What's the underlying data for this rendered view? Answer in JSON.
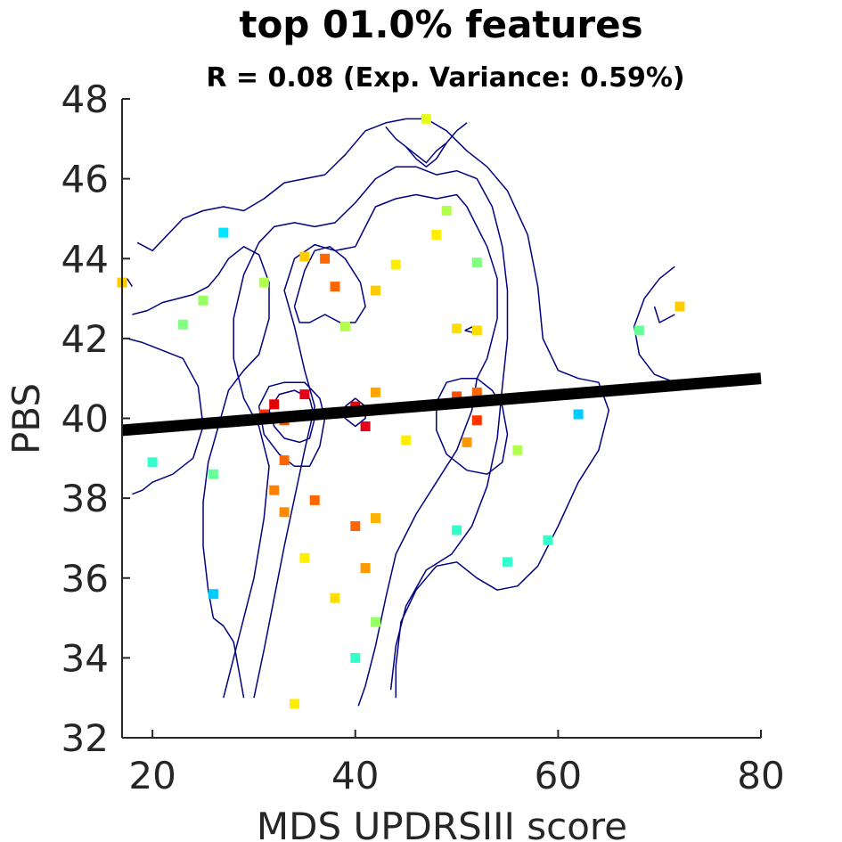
{
  "chart_data": {
    "type": "scatter",
    "title": "top 01.0% features",
    "subtitle": "R = 0.08 (Exp. Variance: 0.59%)",
    "xlabel": "MDS UPDRSIII score",
    "ylabel": "PBS",
    "xlim": [
      17,
      80
    ],
    "ylim": [
      32,
      48
    ],
    "xticks": [
      20,
      40,
      60,
      80
    ],
    "yticks": [
      32,
      34,
      36,
      38,
      40,
      42,
      44,
      46,
      48
    ],
    "grid": false,
    "legend": "none",
    "regression_line": {
      "x": [
        17,
        80
      ],
      "y": [
        39.7,
        41.0
      ]
    },
    "points": [
      {
        "x": 17,
        "y": 43.4,
        "color": "#ffcc00"
      },
      {
        "x": 20,
        "y": 38.9,
        "color": "#33ffcc"
      },
      {
        "x": 23,
        "y": 42.35,
        "color": "#80ff80"
      },
      {
        "x": 25,
        "y": 42.95,
        "color": "#99ff66"
      },
      {
        "x": 26,
        "y": 38.6,
        "color": "#66ff99"
      },
      {
        "x": 26,
        "y": 35.6,
        "color": "#00ccff"
      },
      {
        "x": 27,
        "y": 44.65,
        "color": "#00e5ff"
      },
      {
        "x": 31,
        "y": 43.4,
        "color": "#b3ff4d"
      },
      {
        "x": 31,
        "y": 40.1,
        "color": "#ff3300"
      },
      {
        "x": 32,
        "y": 40.35,
        "color": "#e60000"
      },
      {
        "x": 32,
        "y": 38.2,
        "color": "#ff8000"
      },
      {
        "x": 33,
        "y": 39.95,
        "color": "#ff4d00"
      },
      {
        "x": 33,
        "y": 38.95,
        "color": "#ff6600"
      },
      {
        "x": 33,
        "y": 37.65,
        "color": "#ff8c00"
      },
      {
        "x": 35,
        "y": 40.6,
        "color": "#e6001a"
      },
      {
        "x": 35,
        "y": 44.05,
        "color": "#ffcc00"
      },
      {
        "x": 35,
        "y": 36.5,
        "color": "#ffee00"
      },
      {
        "x": 36,
        "y": 37.95,
        "color": "#ff6600"
      },
      {
        "x": 37,
        "y": 44.0,
        "color": "#ff6600"
      },
      {
        "x": 38,
        "y": 43.3,
        "color": "#ff6600"
      },
      {
        "x": 38,
        "y": 35.5,
        "color": "#ffdd00"
      },
      {
        "x": 39,
        "y": 42.3,
        "color": "#b3ff4d"
      },
      {
        "x": 40,
        "y": 40.3,
        "color": "#e60000"
      },
      {
        "x": 40,
        "y": 37.3,
        "color": "#ff6600"
      },
      {
        "x": 40,
        "y": 34.0,
        "color": "#33ffcc"
      },
      {
        "x": 41,
        "y": 39.8,
        "color": "#e6001a"
      },
      {
        "x": 41,
        "y": 36.25,
        "color": "#ff9900"
      },
      {
        "x": 42,
        "y": 43.2,
        "color": "#ffcc00"
      },
      {
        "x": 42,
        "y": 40.65,
        "color": "#ffa600"
      },
      {
        "x": 42,
        "y": 37.5,
        "color": "#ffb300"
      },
      {
        "x": 42,
        "y": 34.9,
        "color": "#99ff66"
      },
      {
        "x": 44,
        "y": 43.85,
        "color": "#ffee00"
      },
      {
        "x": 45,
        "y": 39.45,
        "color": "#ffee00"
      },
      {
        "x": 47,
        "y": 47.5,
        "color": "#e6ff1a"
      },
      {
        "x": 48,
        "y": 44.6,
        "color": "#ffee00"
      },
      {
        "x": 49,
        "y": 45.2,
        "color": "#b3ff4d"
      },
      {
        "x": 50,
        "y": 42.25,
        "color": "#ffdd00"
      },
      {
        "x": 50,
        "y": 40.55,
        "color": "#ff4d00"
      },
      {
        "x": 50,
        "y": 37.2,
        "color": "#33ffcc"
      },
      {
        "x": 51,
        "y": 39.4,
        "color": "#ff9900"
      },
      {
        "x": 52,
        "y": 43.9,
        "color": "#80ff80"
      },
      {
        "x": 52,
        "y": 42.2,
        "color": "#ffdd00"
      },
      {
        "x": 52,
        "y": 40.65,
        "color": "#ff6600"
      },
      {
        "x": 52,
        "y": 39.95,
        "color": "#ff3300"
      },
      {
        "x": 55,
        "y": 36.4,
        "color": "#33ffcc"
      },
      {
        "x": 56,
        "y": 39.2,
        "color": "#b3ff4d"
      },
      {
        "x": 59,
        "y": 36.95,
        "color": "#33ffcc"
      },
      {
        "x": 62,
        "y": 40.1,
        "color": "#00ccff"
      },
      {
        "x": 68,
        "y": 42.2,
        "color": "#66ff99"
      },
      {
        "x": 72,
        "y": 42.8,
        "color": "#ffcc00"
      },
      {
        "x": 34,
        "y": 32.85,
        "color": "#ffee00"
      }
    ],
    "contours": [
      [
        [
          30,
          33
        ],
        [
          31,
          34.2
        ],
        [
          32,
          35.5
        ],
        [
          33,
          36.8
        ],
        [
          34,
          38
        ],
        [
          35,
          39.2
        ],
        [
          36,
          40.3
        ],
        [
          35,
          41.2
        ],
        [
          34,
          42.3
        ],
        [
          33,
          43.2
        ],
        [
          34,
          44
        ],
        [
          36,
          44.35
        ],
        [
          38,
          44.2
        ],
        [
          40,
          44.3
        ],
        [
          41,
          44.8
        ],
        [
          42,
          45.3
        ],
        [
          44,
          45.5
        ],
        [
          46,
          45.6
        ],
        [
          48,
          45.5
        ],
        [
          50,
          45.6
        ],
        [
          51,
          45.3
        ],
        [
          52,
          44.8
        ],
        [
          53,
          44.3
        ],
        [
          54,
          43.5
        ],
        [
          54,
          42.5
        ],
        [
          53,
          41.5
        ],
        [
          52,
          41
        ],
        [
          51.5,
          40.2
        ],
        [
          50,
          39.2
        ],
        [
          48,
          38.4
        ],
        [
          46,
          37.6
        ],
        [
          44,
          36.6
        ],
        [
          43,
          35.5
        ],
        [
          42,
          34.3
        ],
        [
          41,
          33.3
        ],
        [
          40.3,
          32.8
        ]
      ],
      [
        [
          27,
          33
        ],
        [
          28.5,
          34.5
        ],
        [
          30,
          36
        ],
        [
          31,
          37.5
        ],
        [
          31.5,
          38.8
        ],
        [
          30.5,
          39.8
        ],
        [
          29,
          40.5
        ],
        [
          28,
          41.5
        ],
        [
          28,
          42.5
        ],
        [
          29,
          43.6
        ],
        [
          30.5,
          44.4
        ],
        [
          32,
          44.8
        ],
        [
          34,
          44.9
        ],
        [
          36,
          44.8
        ],
        [
          38,
          44.9
        ],
        [
          40,
          45.4
        ],
        [
          42,
          46
        ],
        [
          44,
          46.3
        ],
        [
          46,
          46.3
        ],
        [
          48,
          46.1
        ],
        [
          50,
          46.2
        ],
        [
          52,
          46
        ],
        [
          53.5,
          45.3
        ],
        [
          54.5,
          44.3
        ],
        [
          55,
          43.2
        ],
        [
          55,
          42
        ],
        [
          54.5,
          40.8
        ],
        [
          54,
          39.5
        ],
        [
          53,
          38.3
        ],
        [
          51.5,
          37.3
        ],
        [
          49.5,
          36.6
        ],
        [
          47,
          36.2
        ],
        [
          45,
          35.3
        ],
        [
          44,
          34.3
        ],
        [
          43.5,
          33.2
        ]
      ],
      [
        [
          18.5,
          44.4
        ],
        [
          20,
          44.2
        ],
        [
          21.5,
          44.6
        ],
        [
          23,
          45
        ],
        [
          25,
          45.2
        ],
        [
          27,
          45.3
        ],
        [
          29,
          45.2
        ],
        [
          31,
          45.5
        ],
        [
          33,
          45.9
        ],
        [
          35,
          46
        ],
        [
          37,
          46.1
        ],
        [
          39,
          46.6
        ],
        [
          41,
          47.2
        ],
        [
          43,
          47.4
        ],
        [
          45,
          47.5
        ],
        [
          47,
          47.5
        ],
        [
          49,
          47.2
        ],
        [
          51,
          46.7
        ],
        [
          53,
          46.3
        ],
        [
          55,
          45.7
        ],
        [
          57,
          44.6
        ],
        [
          58,
          43.3
        ],
        [
          58.5,
          42
        ],
        [
          60,
          41.2
        ],
        [
          62,
          41
        ],
        [
          64,
          40.9
        ],
        [
          65,
          40.2
        ],
        [
          64,
          39.2
        ],
        [
          62,
          38.4
        ],
        [
          60,
          37.3
        ],
        [
          58,
          36.3
        ],
        [
          56,
          35.8
        ],
        [
          54,
          35.7
        ],
        [
          52,
          36
        ],
        [
          50,
          36.4
        ],
        [
          48,
          36.3
        ],
        [
          46,
          35.7
        ],
        [
          44.5,
          34.9
        ],
        [
          44,
          33.8
        ],
        [
          44,
          33
        ]
      ],
      [
        [
          17.5,
          42
        ],
        [
          19,
          41.9
        ],
        [
          21,
          41.7
        ],
        [
          23,
          41.5
        ],
        [
          24.5,
          40.8
        ],
        [
          25,
          39.8
        ],
        [
          24,
          39
        ],
        [
          22,
          38.6
        ],
        [
          20,
          38.4
        ],
        [
          19,
          38.2
        ],
        [
          18,
          38.1
        ]
      ],
      [
        [
          18,
          42.6
        ],
        [
          19.5,
          42.7
        ],
        [
          21,
          42.9
        ],
        [
          22.5,
          43
        ],
        [
          24,
          43.1
        ],
        [
          25.5,
          43.3
        ],
        [
          26.5,
          43.6
        ],
        [
          27.5,
          44
        ],
        [
          29,
          44.3
        ],
        [
          30.5,
          44.1
        ],
        [
          31.5,
          43.4
        ],
        [
          31.5,
          42.5
        ],
        [
          30.5,
          41.6
        ],
        [
          29,
          41.2
        ],
        [
          27.5,
          40.7
        ],
        [
          26.5,
          39.8
        ],
        [
          25.5,
          38.9
        ],
        [
          25,
          37.9
        ],
        [
          25,
          36.8
        ],
        [
          25.5,
          35.7
        ],
        [
          26,
          35
        ],
        [
          27,
          34.8
        ],
        [
          28,
          34.4
        ],
        [
          28.5,
          33.7
        ],
        [
          29,
          33
        ]
      ],
      [
        [
          34,
          42.8
        ],
        [
          35,
          43.7
        ],
        [
          36,
          44.2
        ],
        [
          37.5,
          44.3
        ],
        [
          39,
          44
        ],
        [
          40.5,
          43.4
        ],
        [
          41,
          42.8
        ],
        [
          40,
          42.4
        ],
        [
          38.5,
          42.4
        ],
        [
          37,
          42.6
        ],
        [
          35.5,
          42.4
        ],
        [
          34.5,
          42.4
        ],
        [
          34,
          42.8
        ]
      ],
      [
        [
          31.5,
          40.2
        ],
        [
          32.5,
          40.6
        ],
        [
          34,
          40.7
        ],
        [
          35.5,
          40.5
        ],
        [
          36,
          40
        ],
        [
          35.5,
          39.5
        ],
        [
          34.5,
          39.4
        ],
        [
          33,
          39.5
        ],
        [
          32,
          39.8
        ],
        [
          31.5,
          40.2
        ]
      ],
      [
        [
          30.5,
          40.3
        ],
        [
          31.5,
          40.8
        ],
        [
          33,
          40.9
        ],
        [
          35,
          40.9
        ],
        [
          36.5,
          40.5
        ],
        [
          37,
          40
        ],
        [
          36.5,
          39.3
        ],
        [
          35.5,
          38.8
        ],
        [
          34,
          38.8
        ],
        [
          32.5,
          39.1
        ],
        [
          31,
          39.6
        ],
        [
          30.5,
          40.3
        ]
      ],
      [
        [
          39,
          40.3
        ],
        [
          40,
          40.5
        ],
        [
          41,
          40.3
        ],
        [
          41,
          40
        ],
        [
          40,
          39.8
        ],
        [
          39,
          40
        ],
        [
          39,
          40.3
        ]
      ],
      [
        [
          48,
          40.4
        ],
        [
          49,
          40.9
        ],
        [
          50.5,
          41
        ],
        [
          52,
          41
        ],
        [
          53.5,
          40.7
        ],
        [
          54.5,
          40.3
        ],
        [
          55,
          39.6
        ],
        [
          54.5,
          38.9
        ],
        [
          53,
          38.6
        ],
        [
          51,
          38.7
        ],
        [
          49,
          39.1
        ],
        [
          48,
          39.7
        ],
        [
          48,
          40.4
        ]
      ],
      [
        [
          50.8,
          42.2
        ],
        [
          51.6,
          42.3
        ],
        [
          52.4,
          42.25
        ],
        [
          51.6,
          42.15
        ],
        [
          50.8,
          42.2
        ]
      ],
      [
        [
          43,
          47.3
        ],
        [
          44,
          47
        ],
        [
          45,
          46.8
        ],
        [
          46,
          46.5
        ],
        [
          47,
          46.3
        ],
        [
          48,
          46.5
        ],
        [
          49,
          46.9
        ],
        [
          50,
          47.2
        ],
        [
          51,
          47.4
        ]
      ],
      [
        [
          45,
          46.8
        ],
        [
          46,
          46.6
        ],
        [
          47,
          46.4
        ],
        [
          48,
          46.7
        ],
        [
          49,
          46.9
        ]
      ],
      [
        [
          71.5,
          43.8
        ],
        [
          70,
          43.5
        ],
        [
          68.5,
          43
        ],
        [
          67.5,
          42.3
        ],
        [
          68,
          41.6
        ],
        [
          69.5,
          41.1
        ],
        [
          71.5,
          40.9
        ]
      ],
      [
        [
          69.5,
          42.8
        ],
        [
          70,
          42.4
        ],
        [
          71.5,
          42.6
        ]
      ],
      [
        [
          17.5,
          43.5
        ],
        [
          18,
          43.3
        ]
      ]
    ]
  }
}
